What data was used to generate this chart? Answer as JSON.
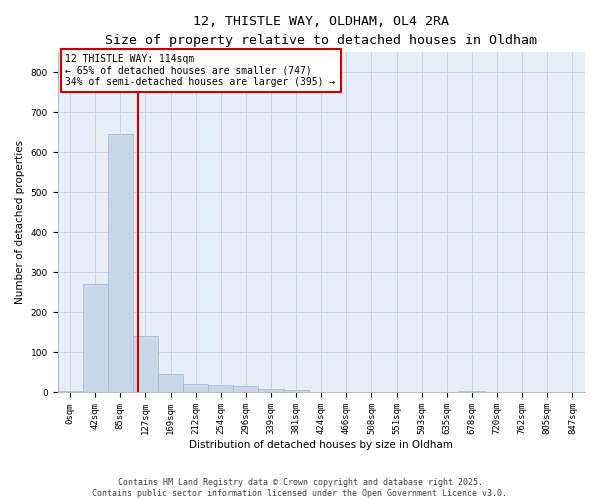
{
  "title_line1": "12, THISTLE WAY, OLDHAM, OL4 2RA",
  "title_line2": "Size of property relative to detached houses in Oldham",
  "xlabel": "Distribution of detached houses by size in Oldham",
  "ylabel": "Number of detached properties",
  "bin_labels": [
    "0sqm",
    "42sqm",
    "85sqm",
    "127sqm",
    "169sqm",
    "212sqm",
    "254sqm",
    "296sqm",
    "339sqm",
    "381sqm",
    "424sqm",
    "466sqm",
    "508sqm",
    "551sqm",
    "593sqm",
    "635sqm",
    "678sqm",
    "720sqm",
    "762sqm",
    "805sqm",
    "847sqm"
  ],
  "bar_values": [
    3,
    270,
    645,
    140,
    45,
    20,
    18,
    15,
    8,
    5,
    2,
    0,
    0,
    0,
    0,
    0,
    3,
    0,
    0,
    0,
    0
  ],
  "bar_color": "#c8d8e8",
  "bar_edgecolor": "#a0b8cc",
  "vline_color": "#cc0000",
  "annotation_text": "12 THISTLE WAY: 114sqm\n← 65% of detached houses are smaller (747)\n34% of semi-detached houses are larger (395) →",
  "annotation_box_facecolor": "#ffffff",
  "annotation_box_edgecolor": "#cc0000",
  "ylim_max": 850,
  "yticks": [
    0,
    100,
    200,
    300,
    400,
    500,
    600,
    700,
    800
  ],
  "grid_color": "#ccd4e4",
  "background_color": "#e8eef8",
  "footer_text": "Contains HM Land Registry data © Crown copyright and database right 2025.\nContains public sector information licensed under the Open Government Licence v3.0.",
  "title_fontsize": 9.5,
  "subtitle_fontsize": 8.5,
  "axis_label_fontsize": 7.5,
  "tick_fontsize": 6.5,
  "annotation_fontsize": 7,
  "footer_fontsize": 6
}
